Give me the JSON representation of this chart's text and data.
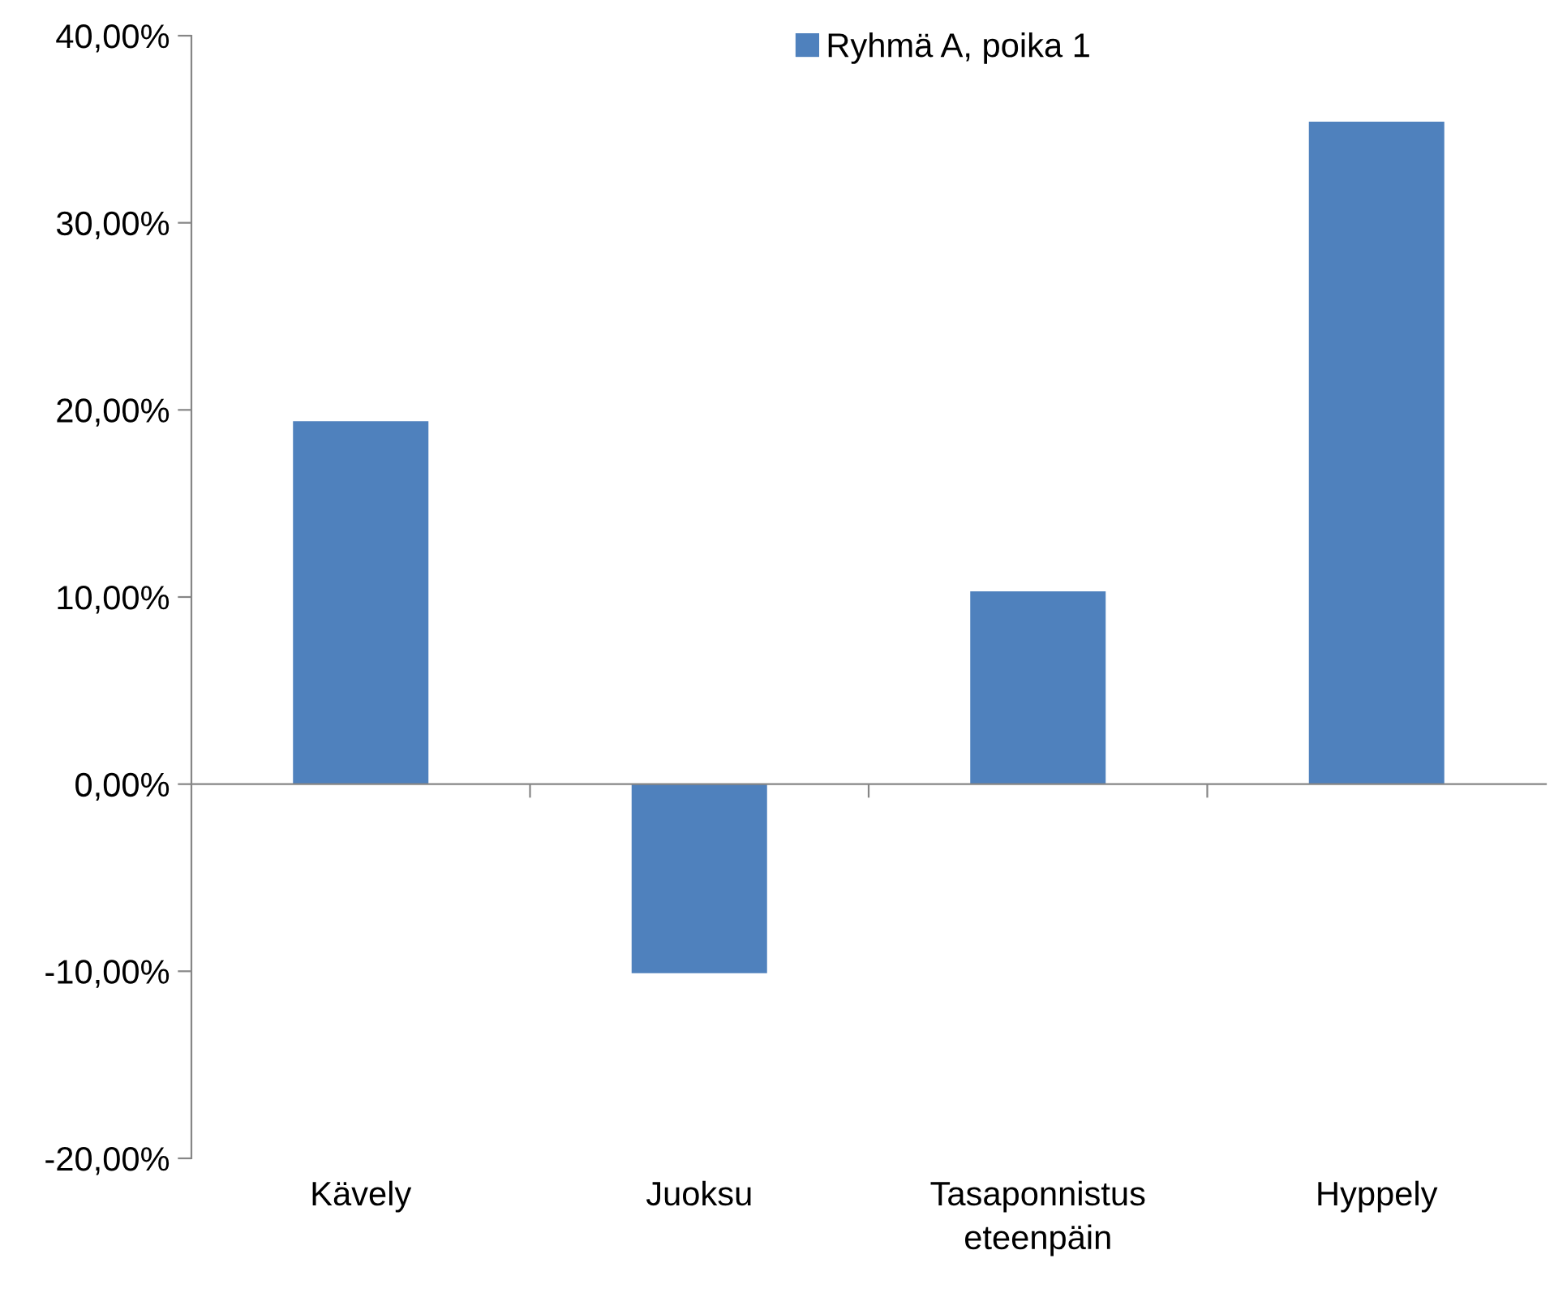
{
  "chart_data": {
    "type": "bar",
    "categories": [
      "Kävely",
      "Juoksu",
      "Tasaponnistus\neteenpäin",
      "Hyppely"
    ],
    "series": [
      {
        "name": "Ryhmä A, poika 1",
        "color": "#4f81bd",
        "values": [
          19.4,
          -10.1,
          10.3,
          35.4
        ]
      }
    ],
    "ylim": [
      -20,
      40
    ],
    "yticks": [
      {
        "value": -20,
        "label": "-20,00%"
      },
      {
        "value": -10,
        "label": "-10,00%"
      },
      {
        "value": 0,
        "label": "0,00%"
      },
      {
        "value": 10,
        "label": "10,00%"
      },
      {
        "value": 20,
        "label": "20,00%"
      },
      {
        "value": 30,
        "label": "30,00%"
      },
      {
        "value": 40,
        "label": "40,00%"
      }
    ],
    "legend": "top"
  }
}
